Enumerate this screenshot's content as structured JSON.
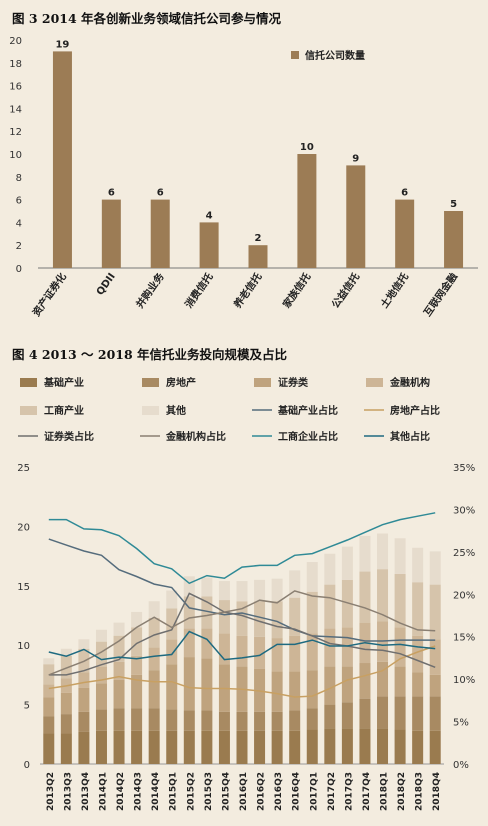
{
  "figure3": {
    "title": "图 3   2014 年各创新业务领域信托公司参与情况",
    "chart_data": {
      "type": "bar",
      "categories": [
        "资产证券化",
        "QDII",
        "并购业务",
        "消费信托",
        "养老信托",
        "家族信托",
        "公益信托",
        "土地信托",
        "互联网金融"
      ],
      "series": [
        {
          "name": "信托公司数量",
          "values": [
            19,
            6,
            6,
            4,
            2,
            10,
            9,
            6,
            5
          ]
        }
      ],
      "ylim": [
        0,
        20
      ],
      "yticks": [
        0,
        2,
        4,
        6,
        8,
        10,
        12,
        14,
        16,
        18,
        20
      ],
      "legend": "top-right",
      "color": "#9c7c55"
    }
  },
  "figure4": {
    "title": "图 4   2013 ～ 2018 年信托业务投向规模及占比",
    "chart_data": {
      "type": "bar",
      "stacked": true,
      "categories": [
        "2013Q2",
        "2013Q3",
        "2013Q4",
        "2014Q1",
        "2014Q2",
        "2014Q3",
        "2014Q4",
        "2015Q1",
        "2015Q2",
        "2015Q3",
        "2015Q4",
        "2016Q1",
        "2016Q2",
        "2016Q3",
        "2016Q4",
        "2017Q1",
        "2017Q2",
        "2017Q3",
        "2017Q4",
        "2018Q1",
        "2018Q2",
        "2018Q3",
        "2018Q4"
      ],
      "ylim": [
        0,
        25
      ],
      "yticks": [
        0,
        5,
        10,
        15,
        20,
        25
      ],
      "y2lim": [
        0,
        35
      ],
      "y2ticks": [
        "0%",
        "5%",
        "10%",
        "15%",
        "20%",
        "25%",
        "30%",
        "35%"
      ],
      "bars": [
        {
          "name": "基础产业",
          "color": "#9a7b4f",
          "values": [
            2.6,
            2.6,
            2.7,
            2.8,
            2.8,
            2.8,
            2.8,
            2.8,
            2.8,
            2.8,
            2.8,
            2.8,
            2.8,
            2.8,
            2.8,
            2.9,
            3.0,
            3.0,
            3.0,
            3.0,
            2.9,
            2.8,
            2.8
          ]
        },
        {
          "name": "房地产",
          "color": "#a88a62",
          "values": [
            1.4,
            1.6,
            1.7,
            1.8,
            1.9,
            1.9,
            1.9,
            1.8,
            1.7,
            1.7,
            1.6,
            1.6,
            1.6,
            1.6,
            1.7,
            1.8,
            2.0,
            2.2,
            2.5,
            2.7,
            2.8,
            2.9,
            2.9
          ]
        },
        {
          "name": "证券类",
          "color": "#bfa37e",
          "values": [
            1.6,
            1.8,
            2.0,
            2.2,
            2.4,
            2.8,
            3.2,
            3.8,
            4.5,
            4.4,
            4.0,
            3.8,
            3.6,
            3.4,
            3.3,
            3.2,
            3.2,
            3.0,
            3.0,
            2.9,
            2.5,
            2.0,
            1.8
          ]
        },
        {
          "name": "金融机构",
          "color": "#cdb596",
          "values": [
            1.1,
            1.2,
            1.3,
            1.4,
            1.5,
            1.6,
            1.9,
            2.1,
            2.4,
            2.5,
            2.6,
            2.6,
            2.7,
            2.8,
            3.0,
            3.1,
            3.2,
            3.3,
            3.4,
            3.4,
            3.3,
            3.1,
            3.0
          ]
        },
        {
          "name": "工商产业",
          "color": "#d6c4ab",
          "values": [
            1.7,
            1.9,
            2.0,
            2.1,
            2.2,
            2.4,
            2.5,
            2.6,
            2.7,
            2.7,
            2.8,
            2.9,
            3.0,
            3.1,
            3.2,
            3.5,
            3.7,
            4.0,
            4.3,
            4.4,
            4.5,
            4.5,
            4.6
          ]
        },
        {
          "name": "其他",
          "color": "#e6dccd",
          "values": [
            0.5,
            0.6,
            0.8,
            1.0,
            1.1,
            1.3,
            1.4,
            1.5,
            1.7,
            1.6,
            1.6,
            1.7,
            1.8,
            1.9,
            2.3,
            2.5,
            2.6,
            2.8,
            3.0,
            3.0,
            3.0,
            2.9,
            2.8
          ]
        }
      ],
      "lines": [
        {
          "name": "基础产业占比",
          "color": "#556c7c",
          "values": [
            26.5,
            25.8,
            25.1,
            24.6,
            22.9,
            22.1,
            21.2,
            20.8,
            18.4,
            18.0,
            17.6,
            17.8,
            17.3,
            16.8,
            15.8,
            15.1,
            15.0,
            14.9,
            14.5,
            14.5,
            14.6,
            14.6,
            14.6
          ]
        },
        {
          "name": "房地产占比",
          "color": "#c8a062",
          "values": [
            8.9,
            9.2,
            9.6,
            9.9,
            10.3,
            9.9,
            9.7,
            9.7,
            9.0,
            8.9,
            8.9,
            8.8,
            8.6,
            8.3,
            7.9,
            8.0,
            8.9,
            9.9,
            10.4,
            11.0,
            12.4,
            13.2,
            13.9
          ]
        },
        {
          "name": "证券类占比",
          "color": "#6f6f6f",
          "values": [
            10.5,
            10.5,
            11.0,
            11.7,
            12.3,
            14.2,
            15.2,
            15.8,
            20.1,
            19.1,
            17.9,
            17.5,
            16.8,
            16.2,
            15.9,
            15.1,
            14.2,
            13.9,
            13.5,
            13.4,
            13.0,
            12.2,
            11.4
          ]
        },
        {
          "name": "金融机构占比",
          "color": "#8a7f72",
          "values": [
            10.5,
            11.3,
            12.1,
            13.2,
            14.5,
            16.1,
            17.3,
            16.1,
            17.2,
            17.5,
            17.9,
            18.3,
            19.3,
            19.0,
            20.4,
            19.8,
            19.6,
            19.0,
            18.4,
            17.6,
            16.6,
            15.8,
            15.7
          ]
        },
        {
          "name": "工商企业占比",
          "color": "#2f8a96",
          "values": [
            28.8,
            28.8,
            27.7,
            27.6,
            26.9,
            25.4,
            23.6,
            23.0,
            21.3,
            22.2,
            21.9,
            23.2,
            23.4,
            23.4,
            24.6,
            24.8,
            25.6,
            26.4,
            27.3,
            28.2,
            28.8,
            29.2,
            29.6
          ]
        },
        {
          "name": "其他占比",
          "color": "#1e6a80",
          "values": [
            13.2,
            12.7,
            13.5,
            12.3,
            12.6,
            12.4,
            12.7,
            12.9,
            15.6,
            14.7,
            12.3,
            12.5,
            12.8,
            14.1,
            14.1,
            14.6,
            13.9,
            13.9,
            14.3,
            14.0,
            14.1,
            13.8,
            13.6
          ]
        }
      ],
      "legend": "top"
    }
  }
}
